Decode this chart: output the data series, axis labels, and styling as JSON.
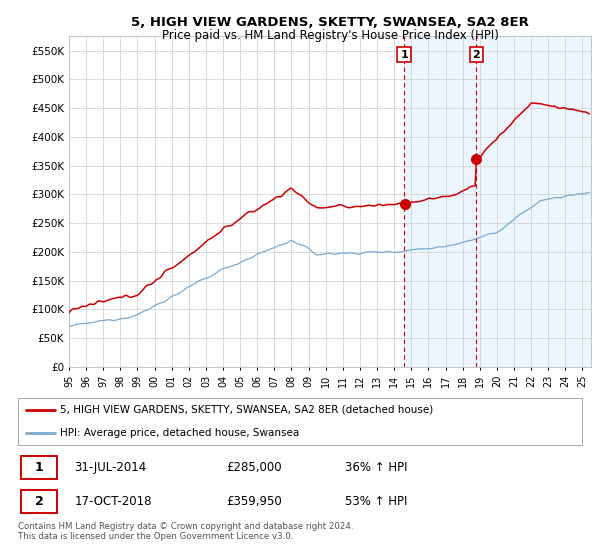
{
  "title": "5, HIGH VIEW GARDENS, SKETTY, SWANSEA, SA2 8ER",
  "subtitle": "Price paid vs. HM Land Registry's House Price Index (HPI)",
  "legend_label_red": "5, HIGH VIEW GARDENS, SKETTY, SWANSEA, SA2 8ER (detached house)",
  "legend_label_blue": "HPI: Average price, detached house, Swansea",
  "sale1_date": "31-JUL-2014",
  "sale1_price": "£285,000",
  "sale1_hpi": "36% ↑ HPI",
  "sale2_date": "17-OCT-2018",
  "sale2_price": "£359,950",
  "sale2_hpi": "53% ↑ HPI",
  "footer": "Contains HM Land Registry data © Crown copyright and database right 2024.\nThis data is licensed under the Open Government Licence v3.0.",
  "red_color": "#cc0000",
  "blue_color": "#7aaad0",
  "bg_color": "#ffffff",
  "grid_color": "#cccccc",
  "sale1_x_year": 2014.58,
  "sale2_x_year": 2018.79,
  "ylim_min": 0,
  "ylim_max": 575000,
  "xlim_min": 1995.0,
  "xlim_max": 2025.5,
  "shade_color": "#ddeeff",
  "shade_alpha": 0.5
}
